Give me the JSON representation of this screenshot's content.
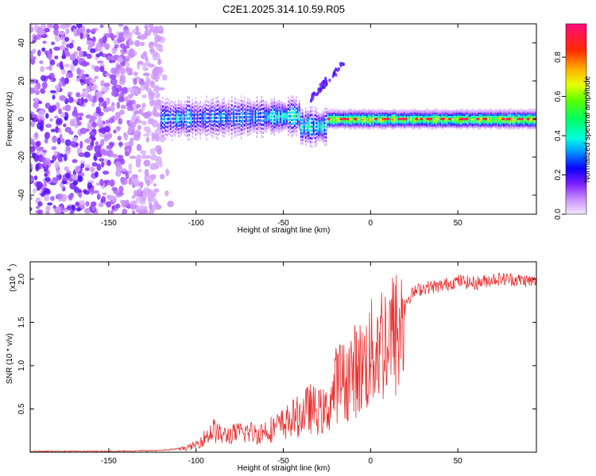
{
  "title": "C2E1.2025.314.10.59.R05",
  "chart_data": [
    {
      "type": "heatmap",
      "title": "C2E1.2025.314.10.59.R05",
      "xlabel": "Height of straight line (km)",
      "ylabel": "Frequency (Hz)",
      "xlim": [
        -195,
        95
      ],
      "ylim": [
        -50,
        50
      ],
      "x_ticks": [
        -150,
        -100,
        -50,
        0,
        50
      ],
      "y_ticks": [
        -40,
        -20,
        0,
        20,
        40
      ],
      "colorbar": {
        "label": "Normalized spectral amplitude",
        "range": [
          0,
          0.97
        ],
        "ticks": [
          0.0,
          0.2,
          0.4,
          0.6,
          0.8
        ]
      },
      "features": [
        {
          "name": "noise",
          "x_range": [
            -195,
            -120
          ],
          "y_range": [
            -50,
            50
          ],
          "amplitude": 0.2
        },
        {
          "name": "echo-band",
          "x_range": [
            -120,
            95
          ],
          "center_freq": 0,
          "amplitude": 0.95
        },
        {
          "name": "upper-streak",
          "x_range": [
            -35,
            -15
          ],
          "y_range": [
            10,
            30
          ],
          "amplitude": 0.15
        }
      ]
    },
    {
      "type": "line",
      "xlabel": "Height of straight line (km)",
      "ylabel": "SNR (10 * v/v)",
      "y_multiplier": "(x10",
      "y_multiplier_exp": "4",
      "xlim": [
        -195,
        95
      ],
      "ylim": [
        0,
        2.2
      ],
      "x_ticks": [
        -150,
        -100,
        -50,
        0,
        50
      ],
      "y_ticks": [
        0.5,
        1.0,
        1.5,
        2.0
      ],
      "series": [
        {
          "name": "SNR",
          "color": "#e83030",
          "x": [
            -195,
            -150,
            -120,
            -110,
            -105,
            -100,
            -95,
            -90,
            -85,
            -80,
            -75,
            -70,
            -65,
            -60,
            -55,
            -50,
            -45,
            -40,
            -35,
            -30,
            -25,
            -22,
            -20,
            -18,
            -15,
            -12,
            -10,
            -5,
            0,
            5,
            10,
            15,
            20,
            25,
            30,
            40,
            50,
            60,
            70,
            80,
            90,
            95
          ],
          "y": [
            0.01,
            0.01,
            0.02,
            0.04,
            0.06,
            0.1,
            0.2,
            0.3,
            0.22,
            0.24,
            0.26,
            0.28,
            0.25,
            0.3,
            0.33,
            0.38,
            0.45,
            0.5,
            0.6,
            0.55,
            0.55,
            0.75,
            0.9,
            1.0,
            0.95,
            1.05,
            1.1,
            1.15,
            1.3,
            1.5,
            1.55,
            1.6,
            1.75,
            1.85,
            1.9,
            1.92,
            1.98,
            1.95,
            2.0,
            2.0,
            1.98,
            1.97
          ]
        }
      ]
    }
  ]
}
